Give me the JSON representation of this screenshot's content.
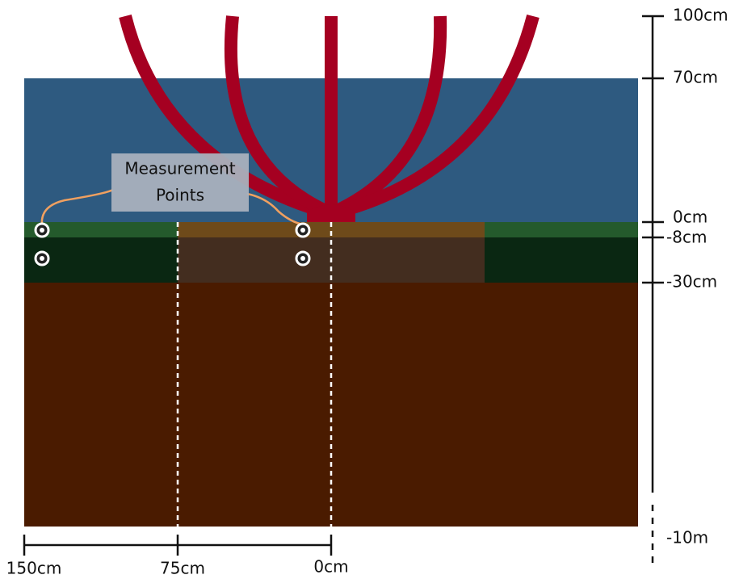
{
  "callout": {
    "lines": [
      "Measurement",
      "Points"
    ]
  },
  "vertical_axis": {
    "labels": [
      "100cm",
      "70cm",
      "0cm",
      "-8cm",
      "-30cm",
      "-10m"
    ]
  },
  "horizontal_axis": {
    "labels": [
      "150cm",
      "75cm",
      "0cm"
    ]
  }
}
